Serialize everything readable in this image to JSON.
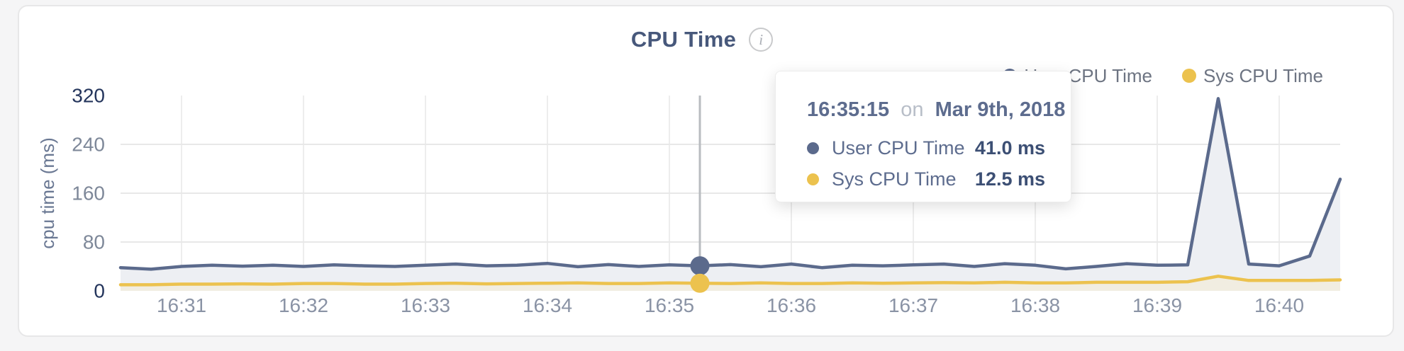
{
  "header": {
    "title": "CPU Time",
    "info_icon_glyph": "i"
  },
  "legend": {
    "items": [
      {
        "label": "User CPU Time",
        "color": "#5b6a8c"
      },
      {
        "label": "Sys CPU Time",
        "color": "#ecc24e"
      }
    ]
  },
  "tooltip": {
    "time": "16:35:15",
    "connector": "on",
    "date": "Mar 9th, 2018",
    "rows": [
      {
        "label": "User CPU Time",
        "value": "41.0 ms",
        "color": "#5b6a8c"
      },
      {
        "label": "Sys CPU Time",
        "value": "12.5 ms",
        "color": "#ecc24e"
      }
    ]
  },
  "chart_data": {
    "type": "area",
    "title": "CPU Time",
    "xlabel": "",
    "ylabel": "cpu time (ms)",
    "ylim": [
      0,
      320
    ],
    "yticks": [
      0,
      80,
      160,
      240,
      320
    ],
    "ytick_emphasized": [
      0,
      320
    ],
    "x_range": [
      "16:30:30",
      "16:40:30"
    ],
    "x_tick_labels": [
      "16:31",
      "16:32",
      "16:33",
      "16:34",
      "16:35",
      "16:36",
      "16:37",
      "16:38",
      "16:39",
      "16:40"
    ],
    "grid": {
      "horizontal": true,
      "vertical": true
    },
    "legend_position": "top-right",
    "x": [
      "16:30:30",
      "16:30:45",
      "16:31:00",
      "16:31:15",
      "16:31:30",
      "16:31:45",
      "16:32:00",
      "16:32:15",
      "16:32:30",
      "16:32:45",
      "16:33:00",
      "16:33:15",
      "16:33:30",
      "16:33:45",
      "16:34:00",
      "16:34:15",
      "16:34:30",
      "16:34:45",
      "16:35:00",
      "16:35:15",
      "16:35:30",
      "16:35:45",
      "16:36:00",
      "16:36:15",
      "16:36:30",
      "16:36:45",
      "16:37:00",
      "16:37:15",
      "16:37:30",
      "16:37:45",
      "16:38:00",
      "16:38:15",
      "16:38:30",
      "16:38:45",
      "16:39:00",
      "16:39:15",
      "16:39:30",
      "16:39:45",
      "16:40:00",
      "16:40:15",
      "16:40:30"
    ],
    "series": [
      {
        "name": "User CPU Time",
        "color": "#5b6a8c",
        "fill": "#edeff3",
        "values": [
          38,
          35.5,
          40,
          42,
          40.5,
          42,
          40,
          42.5,
          41,
          40,
          42,
          44,
          41,
          42,
          45,
          39.5,
          43,
          40,
          42.5,
          41,
          43,
          39.5,
          44,
          38,
          42,
          41,
          42.5,
          44,
          40,
          44.5,
          42,
          36,
          40,
          44.5,
          42,
          42.5,
          315,
          44,
          41,
          57,
          183
        ]
      },
      {
        "name": "Sys CPU Time",
        "color": "#ecc24e",
        "fill": "#f1ede1",
        "values": [
          10,
          10,
          11,
          11,
          11.5,
          11,
          12,
          12,
          11,
          11,
          12,
          12.5,
          11.5,
          12,
          12.5,
          13,
          12,
          12,
          13,
          12.5,
          12,
          13,
          12,
          12,
          13,
          12.5,
          13,
          13.5,
          13,
          14,
          13,
          13,
          14,
          14,
          14,
          15,
          24,
          17,
          17,
          17,
          18
        ]
      }
    ],
    "hover": {
      "x": "16:35:15",
      "values": [
        41.0,
        12.5
      ]
    },
    "colors": {
      "grid_h": "#e8e8e8",
      "grid_v": "#ededed",
      "hover_line": "#b9bcc0",
      "ytick_major": "#24355c",
      "ytick_minor": "#7e8899",
      "xtick": "#8a93a5",
      "ylabel": "#6a7893"
    }
  }
}
